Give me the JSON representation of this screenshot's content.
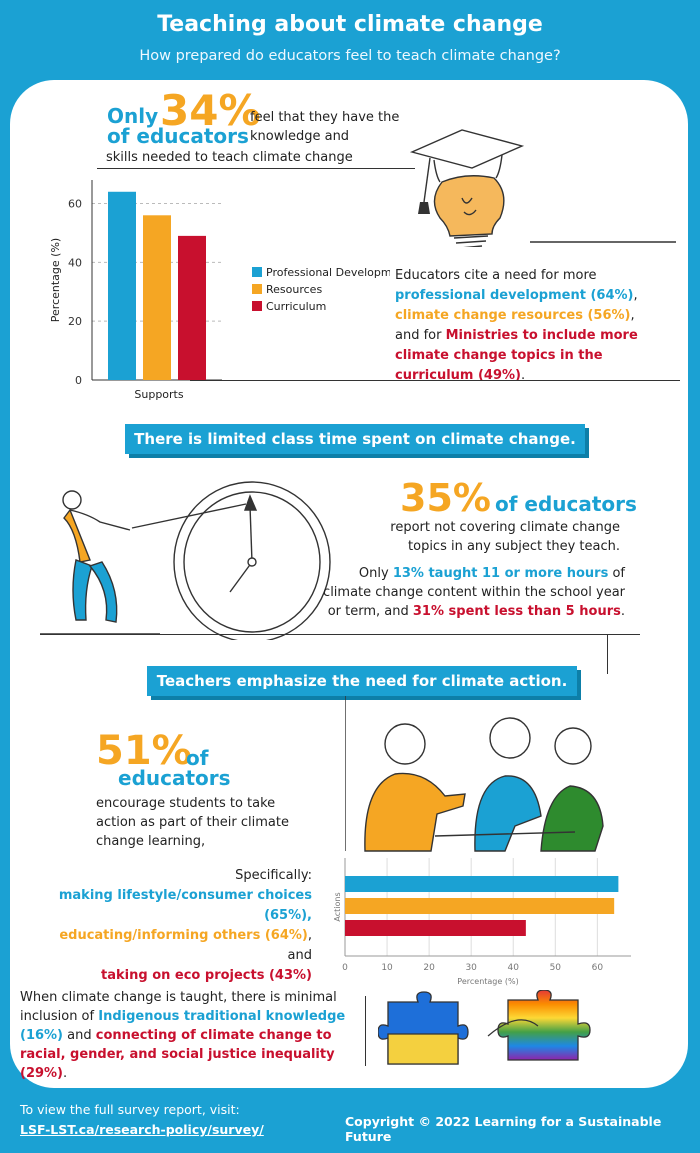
{
  "header": {
    "title": "Teaching about climate change",
    "subtitle": "How prepared do educators feel to teach climate change?"
  },
  "section1": {
    "only": "Only",
    "stat": "34%",
    "of_educators": "of educators",
    "text_a": "feel that they have the knowledge and",
    "text_b": "skills needed to teach climate change",
    "desc_intro": "Educators cite a need for more",
    "desc_pd": "professional development (64%)",
    "desc_comma": ",",
    "desc_res": "climate change resources (56%)",
    "desc_and": ", and",
    "desc_for": "for",
    "desc_min": "Ministries to include more climate change topics in the curriculum (49%)",
    "desc_end": "."
  },
  "banners": {
    "b1": "There is limited class time spent on climate change.",
    "b2": "Teachers emphasize the need for climate action."
  },
  "section2": {
    "stat": "35%",
    "of_educators": "of educators",
    "text": "report not covering climate change topics in any subject they teach.",
    "t_only": "Only",
    "t_13": "13% taught 11 or more hours",
    "t_mid": "of climate change content within the school year or term, and",
    "t_31": "31% spent less than 5 hours",
    "t_end": "."
  },
  "section3": {
    "stat": "51%",
    "of": "of",
    "educators": "educators",
    "text": "encourage students to take action as part of their climate change learning,",
    "specifically": "Specifically:",
    "item1": "making lifestyle/consumer choices (65%),",
    "item2": "educating/informing others (64%)",
    "item2_and": ", and",
    "item3": "taking on eco projects (43%)"
  },
  "section4": {
    "intro": "When climate change is taught, there is minimal inclusion of",
    "ind": "Indigenous traditional knowledge (16%)",
    "and": "and",
    "conn": "connecting of climate change to racial, gender, and social justice inequality (29%)",
    "end": "."
  },
  "footer": {
    "visit": "To view the full survey report, visit:",
    "link": "LSF-LST.ca/research-policy/survey/",
    "copyright": "Copyright © 2022 Learning for a Sustainable Future"
  },
  "colors": {
    "blue": "#1ba1d3",
    "orange": "#f5a623",
    "red": "#c8102e"
  },
  "chart_data": [
    {
      "type": "bar",
      "categories": [
        "Supports"
      ],
      "series": [
        {
          "name": "Professional Developme",
          "values": [
            64
          ],
          "color": "#1ba1d3"
        },
        {
          "name": "Resources",
          "values": [
            56
          ],
          "color": "#f5a623"
        },
        {
          "name": "Curriculum",
          "values": [
            49
          ],
          "color": "#c8102e"
        }
      ],
      "ylabel": "Percentage (%)",
      "yticks": [
        0,
        20,
        40,
        60
      ],
      "ylim": [
        0,
        68
      ],
      "grid": true,
      "legend": "right"
    },
    {
      "type": "bar",
      "orientation": "horizontal",
      "values": [
        65,
        64,
        43
      ],
      "colors": [
        "#1ba1d3",
        "#f5a623",
        "#c8102e"
      ],
      "xlabel": "Percentage (%)",
      "ylabel": "Actions",
      "xticks": [
        0,
        10,
        20,
        30,
        40,
        50,
        60
      ],
      "xlim": [
        0,
        68
      ],
      "grid": true
    }
  ]
}
